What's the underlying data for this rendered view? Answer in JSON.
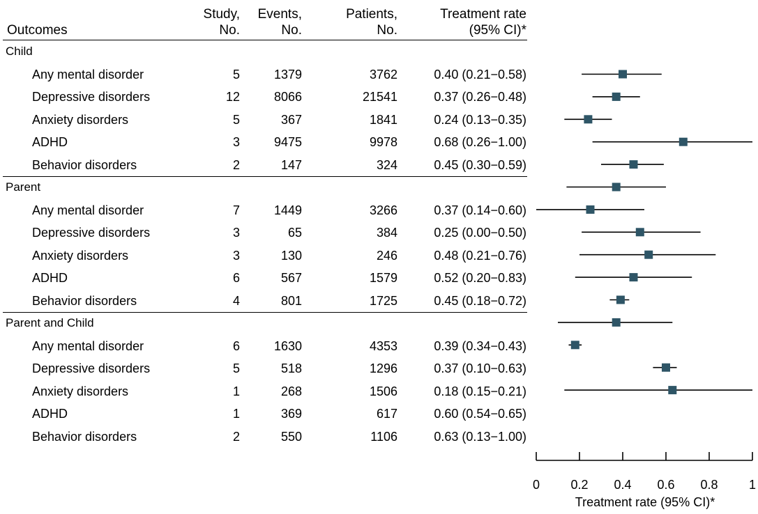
{
  "chart_data": {
    "type": "forest",
    "headers": {
      "outcomes": "Outcomes",
      "study_l1": "Study,",
      "study_l2": "No.",
      "events_l1": "Events,",
      "events_l2": "No.",
      "patients_l1": "Patients,",
      "patients_l2": "No.",
      "rate_l1": "Treatment rate",
      "rate_l2": "(95% CI)*"
    },
    "groups": [
      {
        "name": "Child",
        "rows": [
          {
            "outcome": "Any mental disorder",
            "studies": "5",
            "events": "1379",
            "patients": "3762",
            "ci_text": "0.40 (0.21−0.58)",
            "est": 0.4,
            "lo": 0.21,
            "hi": 0.58
          },
          {
            "outcome": "Depressive disorders",
            "studies": "12",
            "events": "8066",
            "patients": "21541",
            "ci_text": "0.37 (0.26−0.48)",
            "est": 0.37,
            "lo": 0.26,
            "hi": 0.48
          },
          {
            "outcome": "Anxiety disorders",
            "studies": "5",
            "events": "367",
            "patients": "1841",
            "ci_text": "0.24 (0.13−0.35)",
            "est": 0.24,
            "lo": 0.13,
            "hi": 0.35
          },
          {
            "outcome": "ADHD",
            "studies": "3",
            "events": "9475",
            "patients": "9978",
            "ci_text": "0.68 (0.26−1.00)",
            "est": 0.68,
            "lo": 0.26,
            "hi": 1.0
          },
          {
            "outcome": "Behavior disorders",
            "studies": "2",
            "events": "147",
            "patients": "324",
            "ci_text": "0.45 (0.30−0.59)",
            "est": 0.45,
            "lo": 0.3,
            "hi": 0.59
          }
        ]
      },
      {
        "name": "Parent",
        "rows": [
          {
            "outcome": "Any mental disorder",
            "studies": "7",
            "events": "1449",
            "patients": "3266",
            "ci_text": "0.37 (0.14−0.60)",
            "est": 0.37,
            "lo": 0.14,
            "hi": 0.6
          },
          {
            "outcome": "Depressive disorders",
            "studies": "3",
            "events": "65",
            "patients": "384",
            "ci_text": "0.25 (0.00−0.50)",
            "est": 0.25,
            "lo": 0.0,
            "hi": 0.5
          },
          {
            "outcome": "Anxiety disorders",
            "studies": "3",
            "events": "130",
            "patients": "246",
            "ci_text": "0.48 (0.21−0.76)",
            "est": 0.48,
            "lo": 0.21,
            "hi": 0.76
          },
          {
            "outcome": "ADHD",
            "studies": "6",
            "events": "567",
            "patients": "1579",
            "ci_text": "0.52 (0.20−0.83)",
            "est": 0.52,
            "lo": 0.2,
            "hi": 0.83
          },
          {
            "outcome": "Behavior disorders",
            "studies": "4",
            "events": "801",
            "patients": "1725",
            "ci_text": "0.45 (0.18−0.72)",
            "est": 0.45,
            "lo": 0.18,
            "hi": 0.72
          }
        ]
      },
      {
        "name": "Parent and Child",
        "rows": [
          {
            "outcome": "Any mental disorder",
            "studies": "6",
            "events": "1630",
            "patients": "4353",
            "ci_text": "0.39 (0.34−0.43)",
            "est": 0.39,
            "lo": 0.34,
            "hi": 0.43
          },
          {
            "outcome": "Depressive disorders",
            "studies": "5",
            "events": "518",
            "patients": "1296",
            "ci_text": "0.37 (0.10−0.63)",
            "est": 0.37,
            "lo": 0.1,
            "hi": 0.63
          },
          {
            "outcome": "Anxiety disorders",
            "studies": "1",
            "events": "268",
            "patients": "1506",
            "ci_text": "0.18 (0.15−0.21)",
            "est": 0.18,
            "lo": 0.15,
            "hi": 0.21
          },
          {
            "outcome": "ADHD",
            "studies": "1",
            "events": "369",
            "patients": "617",
            "ci_text": "0.60 (0.54−0.65)",
            "est": 0.6,
            "lo": 0.54,
            "hi": 0.65
          },
          {
            "outcome": "Behavior disorders",
            "studies": "2",
            "events": "550",
            "patients": "1106",
            "ci_text": "0.63 (0.13−1.00)",
            "est": 0.63,
            "lo": 0.13,
            "hi": 1.0
          }
        ]
      }
    ],
    "plot_points": [
      {
        "est": 0.4,
        "lo": 0.21,
        "hi": 0.58
      },
      {
        "est": 0.37,
        "lo": 0.26,
        "hi": 0.48
      },
      {
        "est": 0.24,
        "lo": 0.13,
        "hi": 0.35
      },
      {
        "est": 0.68,
        "lo": 0.26,
        "hi": 1.0
      },
      {
        "est": 0.45,
        "lo": 0.3,
        "hi": 0.59
      },
      {
        "est": 0.37,
        "lo": 0.14,
        "hi": 0.6
      },
      {
        "est": 0.25,
        "lo": 0.0,
        "hi": 0.5
      },
      {
        "est": 0.48,
        "lo": 0.21,
        "hi": 0.76
      },
      {
        "est": 0.52,
        "lo": 0.2,
        "hi": 0.83
      },
      {
        "est": 0.45,
        "lo": 0.18,
        "hi": 0.72
      },
      {
        "est": 0.39,
        "lo": 0.34,
        "hi": 0.43
      },
      {
        "est": 0.37,
        "lo": 0.1,
        "hi": 0.63
      },
      {
        "est": 0.18,
        "lo": 0.15,
        "hi": 0.21
      },
      {
        "est": 0.6,
        "lo": 0.54,
        "hi": 0.65
      },
      {
        "est": 0.63,
        "lo": 0.13,
        "hi": 1.0
      }
    ],
    "xlabel": "Treatment rate (95% CI)*",
    "xlim": [
      0,
      1
    ],
    "xticks": [
      0,
      0.2,
      0.4,
      0.6,
      0.8,
      1
    ],
    "xtick_labels": [
      "0",
      "0.2",
      "0.4",
      "0.6",
      "0.8",
      "1"
    ],
    "marker_color": "#2e5566",
    "grid": false
  }
}
